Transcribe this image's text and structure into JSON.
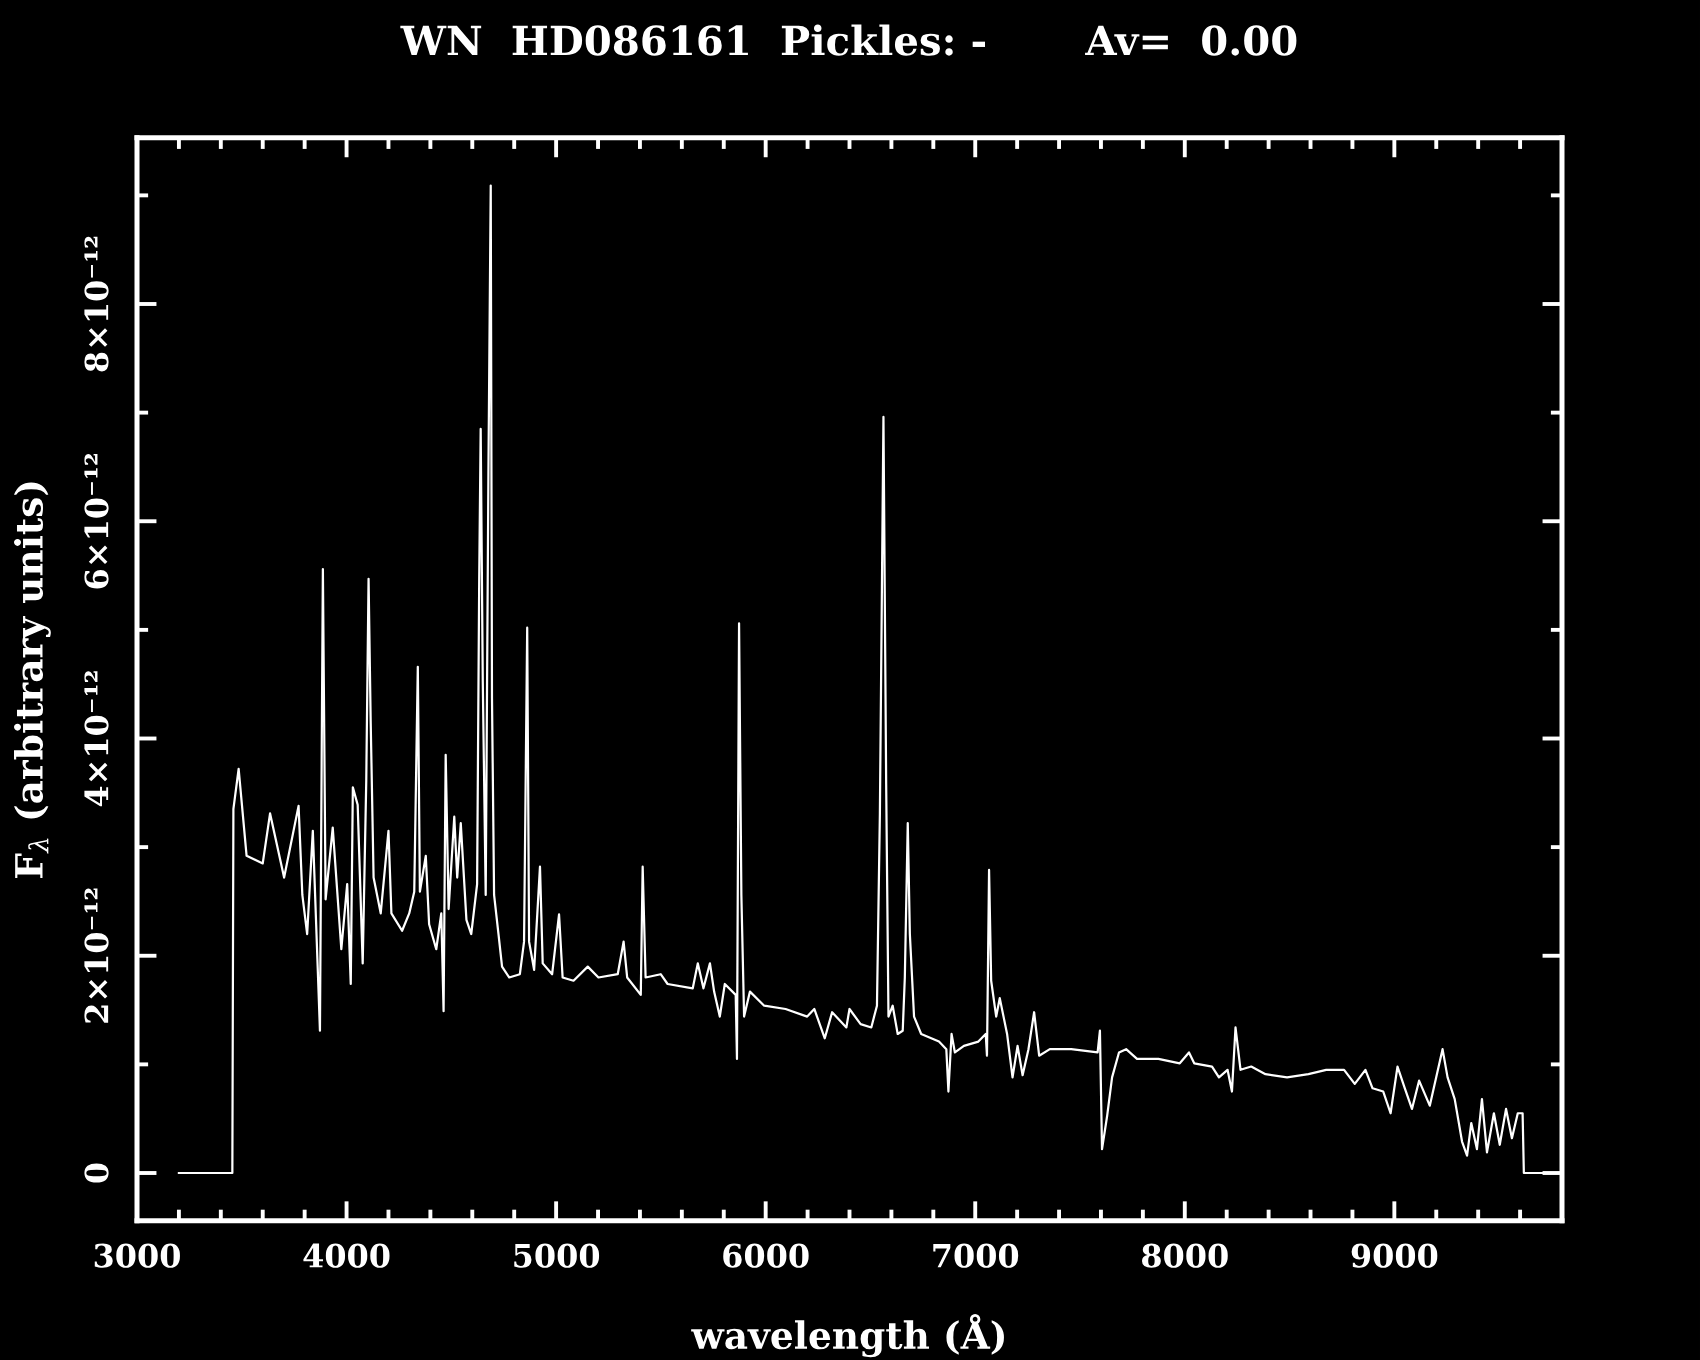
{
  "chart_data": {
    "type": "line",
    "title": "WN  HD086161  Pickles: -       Av=  0.00",
    "xlabel": "wavelength (Å)",
    "ylabel": "F$_{λ}$ (arbitrary units)",
    "x": [
      3200,
      3455,
      3460,
      3485,
      3523,
      3600,
      3635,
      3702,
      3771,
      3789,
      3812,
      3839,
      3873,
      3887,
      3900,
      3934,
      3975,
      4003,
      4020,
      4030,
      4053,
      4077,
      4094,
      4105,
      4115,
      4129,
      4163,
      4200,
      4214,
      4265,
      4299,
      4323,
      4340,
      4350,
      4378,
      4394,
      4428,
      4452,
      4463,
      4473,
      4487,
      4514,
      4528,
      4545,
      4572,
      4595,
      4623,
      4633,
      4640,
      4650,
      4664,
      4677,
      4688,
      4694,
      4704,
      4725,
      4742,
      4776,
      4827,
      4847,
      4862,
      4871,
      4895,
      4923,
      4936,
      4981,
      5014,
      5031,
      5083,
      5151,
      5202,
      5294,
      5322,
      5339,
      5404,
      5413,
      5427,
      5499,
      5532,
      5652,
      5676,
      5703,
      5734,
      5754,
      5781,
      5805,
      5857,
      5863,
      5873,
      5884,
      5897,
      5925,
      5993,
      6095,
      6198,
      6232,
      6282,
      6317,
      6385,
      6400,
      6453,
      6504,
      6531,
      6545,
      6562,
      6575,
      6586,
      6606,
      6630,
      6654,
      6664,
      6678,
      6688,
      6708,
      6742,
      6827,
      6862,
      6872,
      6887,
      6903,
      6946,
      7015,
      7050,
      7056,
      7066,
      7076,
      7100,
      7117,
      7152,
      7178,
      7202,
      7226,
      7254,
      7281,
      7305,
      7356,
      7458,
      7584,
      7595,
      7605,
      7629,
      7653,
      7686,
      7720,
      7772,
      7874,
      7976,
      8020,
      8045,
      8130,
      8163,
      8204,
      8225,
      8242,
      8266,
      8317,
      8385,
      8488,
      8590,
      8675,
      8760,
      8811,
      8862,
      8896,
      8947,
      8982,
      9015,
      9050,
      9084,
      9118,
      9169,
      9203,
      9230,
      9254,
      9288,
      9323,
      9347,
      9367,
      9394,
      9418,
      9442,
      9475,
      9503,
      9533,
      9561,
      9589,
      9612,
      9618,
      9782
    ],
    "series": [
      {
        "color": "#ffffff",
        "values": [
          0,
          0,
          3.35e-12,
          3.72e-12,
          2.92e-12,
          2.85e-12,
          3.31e-12,
          2.72e-12,
          3.38e-12,
          2.56e-12,
          2.2e-12,
          3.15e-12,
          1.31e-12,
          5.56e-12,
          2.52e-12,
          3.18e-12,
          2.06e-12,
          2.66e-12,
          1.74e-12,
          3.55e-12,
          3.39e-12,
          1.93e-12,
          3.61e-12,
          5.47e-12,
          4.17e-12,
          2.72e-12,
          2.39e-12,
          3.15e-12,
          2.39e-12,
          2.23e-12,
          2.39e-12,
          2.59e-12,
          4.66e-12,
          2.59e-12,
          2.92e-12,
          2.29e-12,
          2.06e-12,
          2.39e-12,
          1.49e-12,
          3.85e-12,
          2.43e-12,
          3.28e-12,
          2.72e-12,
          3.22e-12,
          2.33e-12,
          2.2e-12,
          2.66e-12,
          5.48e-12,
          6.85e-12,
          4.53e-12,
          2.56e-12,
          6.47e-12,
          9.09e-12,
          4.37e-12,
          2.56e-12,
          2.2e-12,
          1.9e-12,
          1.8e-12,
          1.83e-12,
          2.13e-12,
          5.02e-12,
          2.13e-12,
          1.87e-12,
          2.82e-12,
          1.93e-12,
          1.83e-12,
          2.38e-12,
          1.8e-12,
          1.77e-12,
          1.9e-12,
          1.8e-12,
          1.83e-12,
          2.13e-12,
          1.8e-12,
          1.64e-12,
          2.82e-12,
          1.8e-12,
          1.83e-12,
          1.74e-12,
          1.7e-12,
          1.93e-12,
          1.7e-12,
          1.93e-12,
          1.67e-12,
          1.44e-12,
          1.74e-12,
          1.64e-12,
          1.05e-12,
          5.06e-12,
          2.56e-12,
          1.44e-12,
          1.67e-12,
          1.54e-12,
          1.51e-12,
          1.44e-12,
          1.51e-12,
          1.24e-12,
          1.48e-12,
          1.34e-12,
          1.51e-12,
          1.37e-12,
          1.34e-12,
          1.54e-12,
          3.31e-12,
          6.96e-12,
          3.58e-12,
          1.44e-12,
          1.54e-12,
          1.28e-12,
          1.31e-12,
          1.8e-12,
          3.22e-12,
          2.2e-12,
          1.44e-12,
          1.28e-12,
          1.21e-12,
          1.14e-12,
          7.5e-13,
          1.28e-12,
          1.11e-12,
          1.17e-12,
          1.21e-12,
          1.28e-12,
          1.08e-12,
          2.79e-12,
          1.77e-12,
          1.44e-12,
          1.61e-12,
          1.28e-12,
          8.8e-13,
          1.17e-12,
          9e-13,
          1.14e-12,
          1.48e-12,
          1.08e-12,
          1.14e-12,
          1.14e-12,
          1.11e-12,
          1.31e-12,
          2.2e-13,
          5.2e-13,
          8.8e-13,
          1.11e-12,
          1.14e-12,
          1.05e-12,
          1.05e-12,
          1.01e-12,
          1.11e-12,
          1.01e-12,
          9.8e-13,
          8.8e-13,
          9.5e-13,
          7.5e-13,
          1.34e-12,
          9.5e-13,
          9.8e-13,
          9.1e-13,
          8.8e-13,
          9.1e-13,
          9.5e-13,
          9.5e-13,
          8.2e-13,
          9.5e-13,
          7.8e-13,
          7.5e-13,
          5.5e-13,
          9.8e-13,
          7.8e-13,
          5.9e-13,
          8.5e-13,
          6.2e-13,
          9.1e-13,
          1.14e-12,
          8.8e-13,
          6.8e-13,
          2.9e-13,
          1.6e-13,
          4.6e-13,
          2.2e-13,
          6.8e-13,
          1.9e-13,
          5.5e-13,
          2.6e-13,
          5.9e-13,
          3.2e-13,
          5.5e-13,
          5.5e-13,
          0,
          0
        ]
      }
    ],
    "xlim": [
      3000,
      9800
    ],
    "ylim": [
      -4.4e-13,
      9.53e-12
    ],
    "xticks": [
      3000,
      {
        "value": 3200,
        "label": null
      },
      {
        "value": 3400,
        "label": null
      },
      {
        "value": 3600,
        "label": null
      },
      {
        "value": 3800,
        "label": null
      },
      4000,
      {
        "value": 4200,
        "label": null
      },
      {
        "value": 4400,
        "label": null
      },
      {
        "value": 4600,
        "label": null
      },
      {
        "value": 4800,
        "label": null
      },
      5000,
      {
        "value": 5200,
        "label": null
      },
      {
        "value": 5400,
        "label": null
      },
      {
        "value": 5600,
        "label": null
      },
      {
        "value": 5800,
        "label": null
      },
      6000,
      {
        "value": 6200,
        "label": null
      },
      {
        "value": 6400,
        "label": null
      },
      {
        "value": 6600,
        "label": null
      },
      {
        "value": 6800,
        "label": null
      },
      7000,
      {
        "value": 7200,
        "label": null
      },
      {
        "value": 7400,
        "label": null
      },
      {
        "value": 7600,
        "label": null
      },
      {
        "value": 7800,
        "label": null
      },
      8000,
      {
        "value": 8200,
        "label": null
      },
      {
        "value": 8400,
        "label": null
      },
      {
        "value": 8600,
        "label": null
      },
      {
        "value": 8800,
        "label": null
      },
      9000,
      {
        "value": 9200,
        "label": null
      },
      {
        "value": 9400,
        "label": null
      },
      {
        "value": 9600,
        "label": null
      }
    ],
    "yticks": [
      0,
      {
        "value": 1e-12,
        "label": null
      },
      {
        "value": 2e-12,
        "label": "2×10⁻¹²"
      },
      {
        "value": 3e-12,
        "label": null
      },
      {
        "value": 4e-12,
        "label": "4×10⁻¹²"
      },
      {
        "value": 5e-12,
        "label": null
      },
      {
        "value": 6e-12,
        "label": "6×10⁻¹²"
      },
      {
        "value": 7e-12,
        "label": null
      },
      {
        "value": 8e-12,
        "label": "8×10⁻¹²"
      },
      {
        "value": 9e-12,
        "label": null
      }
    ]
  }
}
